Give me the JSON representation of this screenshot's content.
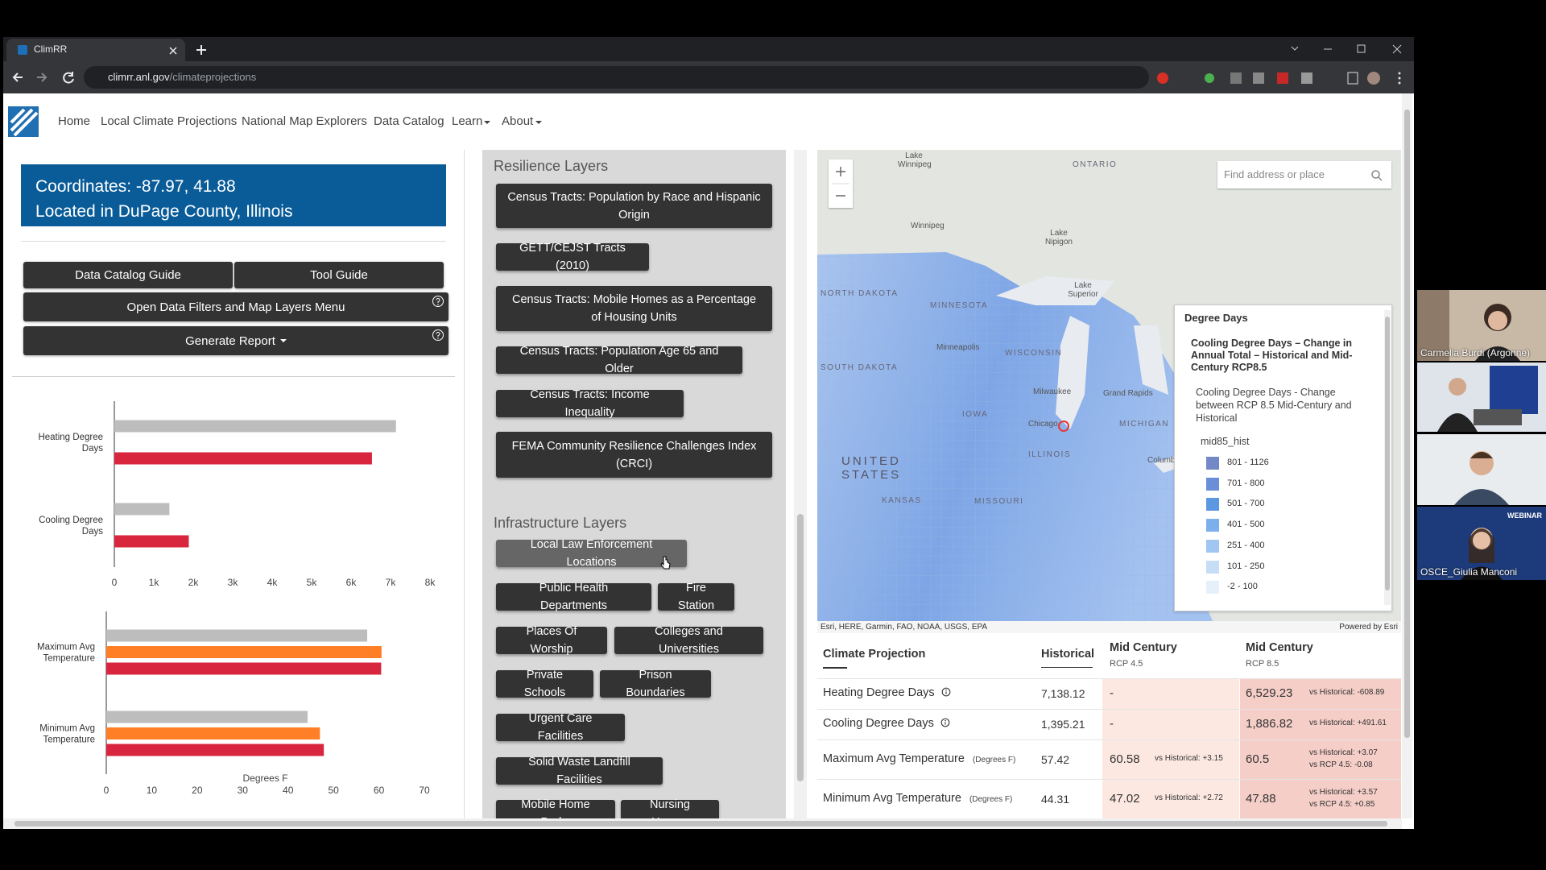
{
  "browser": {
    "tab_title": "ClimRR",
    "url_host": "climrr.anl.gov",
    "url_path": "/climateprojections"
  },
  "nav": {
    "items": [
      "Home",
      "Local Climate Projections",
      "National Map Explorers",
      "Data Catalog",
      "Learn",
      "About"
    ]
  },
  "location": {
    "coordinates": "Coordinates: -87.97, 41.88",
    "county": "Located in DuPage County, Illinois"
  },
  "buttons": [
    "Data Catalog Guide",
    "Tool Guide",
    "Open Data Filters and Map Layers Menu",
    "Generate Report"
  ],
  "chart_data": [
    {
      "type": "bar",
      "orientation": "horizontal",
      "categories": [
        "Heating Degree Days",
        "Cooling Degree Days"
      ],
      "series": [
        {
          "color": "#bdbdbd",
          "values": [
            7138.12,
            1395.21
          ]
        },
        {
          "color": "#d7263d",
          "values": [
            6529.23,
            1886.82
          ]
        }
      ],
      "xlim": [
        0,
        8000
      ],
      "xticks": [
        0,
        {
          "value": 1000,
          "label": "1k"
        },
        {
          "value": 2000,
          "label": "2k"
        },
        {
          "value": 3000,
          "label": "3k"
        },
        {
          "value": 4000,
          "label": "4k"
        },
        {
          "value": 5000,
          "label": "5k"
        },
        {
          "value": 6000,
          "label": "6k"
        },
        {
          "value": 7000,
          "label": "7k"
        },
        {
          "value": 8000,
          "label": "8k"
        }
      ]
    },
    {
      "type": "bar",
      "orientation": "horizontal",
      "categories": [
        "Maximum Avg Temperature",
        "Minimum Avg Temperature"
      ],
      "series": [
        {
          "color": "#bdbdbd",
          "values": [
            57.42,
            44.31
          ]
        },
        {
          "color": "#ff7f27",
          "values": [
            60.58,
            47.02
          ]
        },
        {
          "color": "#d7263d",
          "values": [
            60.5,
            47.88
          ]
        }
      ],
      "xlabel": "Degrees F",
      "xlim": [
        0,
        70
      ],
      "xticks": [
        0,
        10,
        20,
        30,
        40,
        50,
        60,
        70
      ]
    }
  ],
  "layers": {
    "resilience_title": "Resilience Layers",
    "resilience": [
      "Census Tracts: Population by Race and Hispanic Origin",
      "GETT/CEJST Tracts (2010)",
      "Census Tracts: Mobile Homes as a Percentage of Housing Units",
      "Census Tracts: Population Age 65 and Older",
      "Census Tracts: Income Inequality",
      "FEMA Community Resilience Challenges Index (CRCI)"
    ],
    "infrastructure_title": "Infrastructure Layers",
    "infrastructure": [
      "Local Law Enforcement Locations",
      "Public Health Departments",
      "Fire Station",
      "Places Of Worship",
      "Colleges and Universities",
      "Private Schools",
      "Prison Boundaries",
      "Urgent Care Facilities",
      "Solid Waste Landfill Facilities",
      "Mobile Home Parks",
      "Nursing Homes"
    ]
  },
  "map": {
    "search_placeholder": "Find address or place",
    "labels": [
      "ONTARIO",
      "Lake Winnipeg",
      "Winnipeg",
      "Lake Nipigon",
      "Lake Superior",
      "NORTH DAKOTA",
      "MINNESOTA",
      "Minneapolis",
      "WISCONSIN",
      "SOUTH DAKOTA",
      "Milwaukee",
      "Grand Rapids",
      "Chicago",
      "IOWA",
      "MICHIGAN",
      "ILLINOIS",
      "UNITED STATES",
      "MISSOURI",
      "KANSAS",
      "Columbus"
    ],
    "attribution": "Esri, HERE, Garmin, FAO, NOAA, USGS, EPA",
    "powered_by": "Powered by Esri"
  },
  "legend": {
    "title": "Degree Days",
    "layer": "Cooling Degree Days – Change in Annual Total – Historical and Mid-Century RCP8.5",
    "description": "Cooling Degree Days - Change between RCP 8.5 Mid-Century and Historical",
    "field": "mid85_hist",
    "classes": [
      {
        "label": "801 - 1126",
        "color": "#7388c6"
      },
      {
        "label": "701 - 800",
        "color": "#6a8fd8"
      },
      {
        "label": "501 - 700",
        "color": "#5c98e2"
      },
      {
        "label": "401 - 500",
        "color": "#7cb0ec"
      },
      {
        "label": "251 - 400",
        "color": "#a0c6f1"
      },
      {
        "label": "101 - 250",
        "color": "#c6ddf6"
      },
      {
        "label": "-2 - 100",
        "color": "#e6f0fb"
      }
    ]
  },
  "table": {
    "headers": [
      {
        "title": "Climate Projection"
      },
      {
        "title": "Historical"
      },
      {
        "title": "Mid Century",
        "sub": "RCP 4.5"
      },
      {
        "title": "Mid Century",
        "sub": "RCP 8.5"
      }
    ],
    "rows": [
      {
        "name": "Heating Degree Days",
        "historical": "7,138.12",
        "rcp45": "-",
        "rcp85": "6,529.23",
        "rcp85_notes": [
          "vs Historical: -608.89"
        ]
      },
      {
        "name": "Cooling Degree Days",
        "historical": "1,395.21",
        "rcp45": "-",
        "rcp85": "1,886.82",
        "rcp85_notes": [
          "vs Historical: +491.61"
        ]
      },
      {
        "name": "Maximum Avg Temperature",
        "unit": "(Degrees F)",
        "historical": "57.42",
        "rcp45": "60.58",
        "rcp45_notes": [
          "vs Historical: +3.15"
        ],
        "rcp85": "60.5",
        "rcp85_notes": [
          "vs Historical: +3.07",
          "vs RCP 4.5: -0.08"
        ]
      },
      {
        "name": "Minimum Avg Temperature",
        "unit": "(Degrees F)",
        "historical": "44.31",
        "rcp45": "47.02",
        "rcp45_notes": [
          "vs Historical: +2.72"
        ],
        "rcp85": "47.88",
        "rcp85_notes": [
          "vs Historical: +3.57",
          "vs RCP 4.5: +0.85"
        ]
      }
    ]
  },
  "video": {
    "names": [
      "Carmella Burdi (Argonne)",
      "OSCE_Giulia Manconi"
    ],
    "banner": "WEBINAR"
  }
}
